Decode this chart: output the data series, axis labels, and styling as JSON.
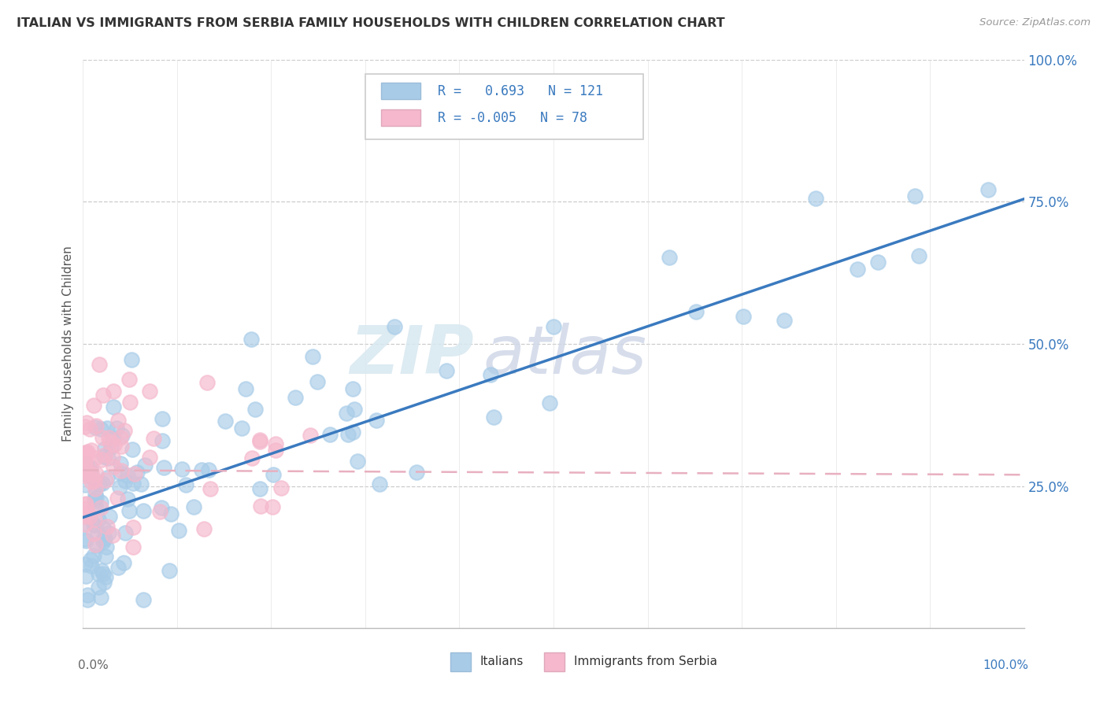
{
  "title": "ITALIAN VS IMMIGRANTS FROM SERBIA FAMILY HOUSEHOLDS WITH CHILDREN CORRELATION CHART",
  "source": "Source: ZipAtlas.com",
  "ylabel": "Family Households with Children",
  "blue_color": "#a8cce8",
  "pink_color": "#f5b8cc",
  "blue_line_color": "#3a7abf",
  "pink_line_color": "#e8b0c0",
  "background_color": "#ffffff",
  "blue_trend_x0": 0.0,
  "blue_trend_y0": 0.195,
  "blue_trend_x1": 1.0,
  "blue_trend_y1": 0.755,
  "pink_trend_x0": 0.0,
  "pink_trend_y0": 0.278,
  "pink_trend_x1": 1.0,
  "pink_trend_y1": 0.27,
  "ylim_min": 0.0,
  "ylim_max": 1.0,
  "xlim_min": 0.0,
  "xlim_max": 1.0,
  "yticks": [
    0.25,
    0.5,
    0.75,
    1.0
  ],
  "ytick_labels": [
    "25.0%",
    "50.0%",
    "75.0%",
    "100.0%"
  ]
}
